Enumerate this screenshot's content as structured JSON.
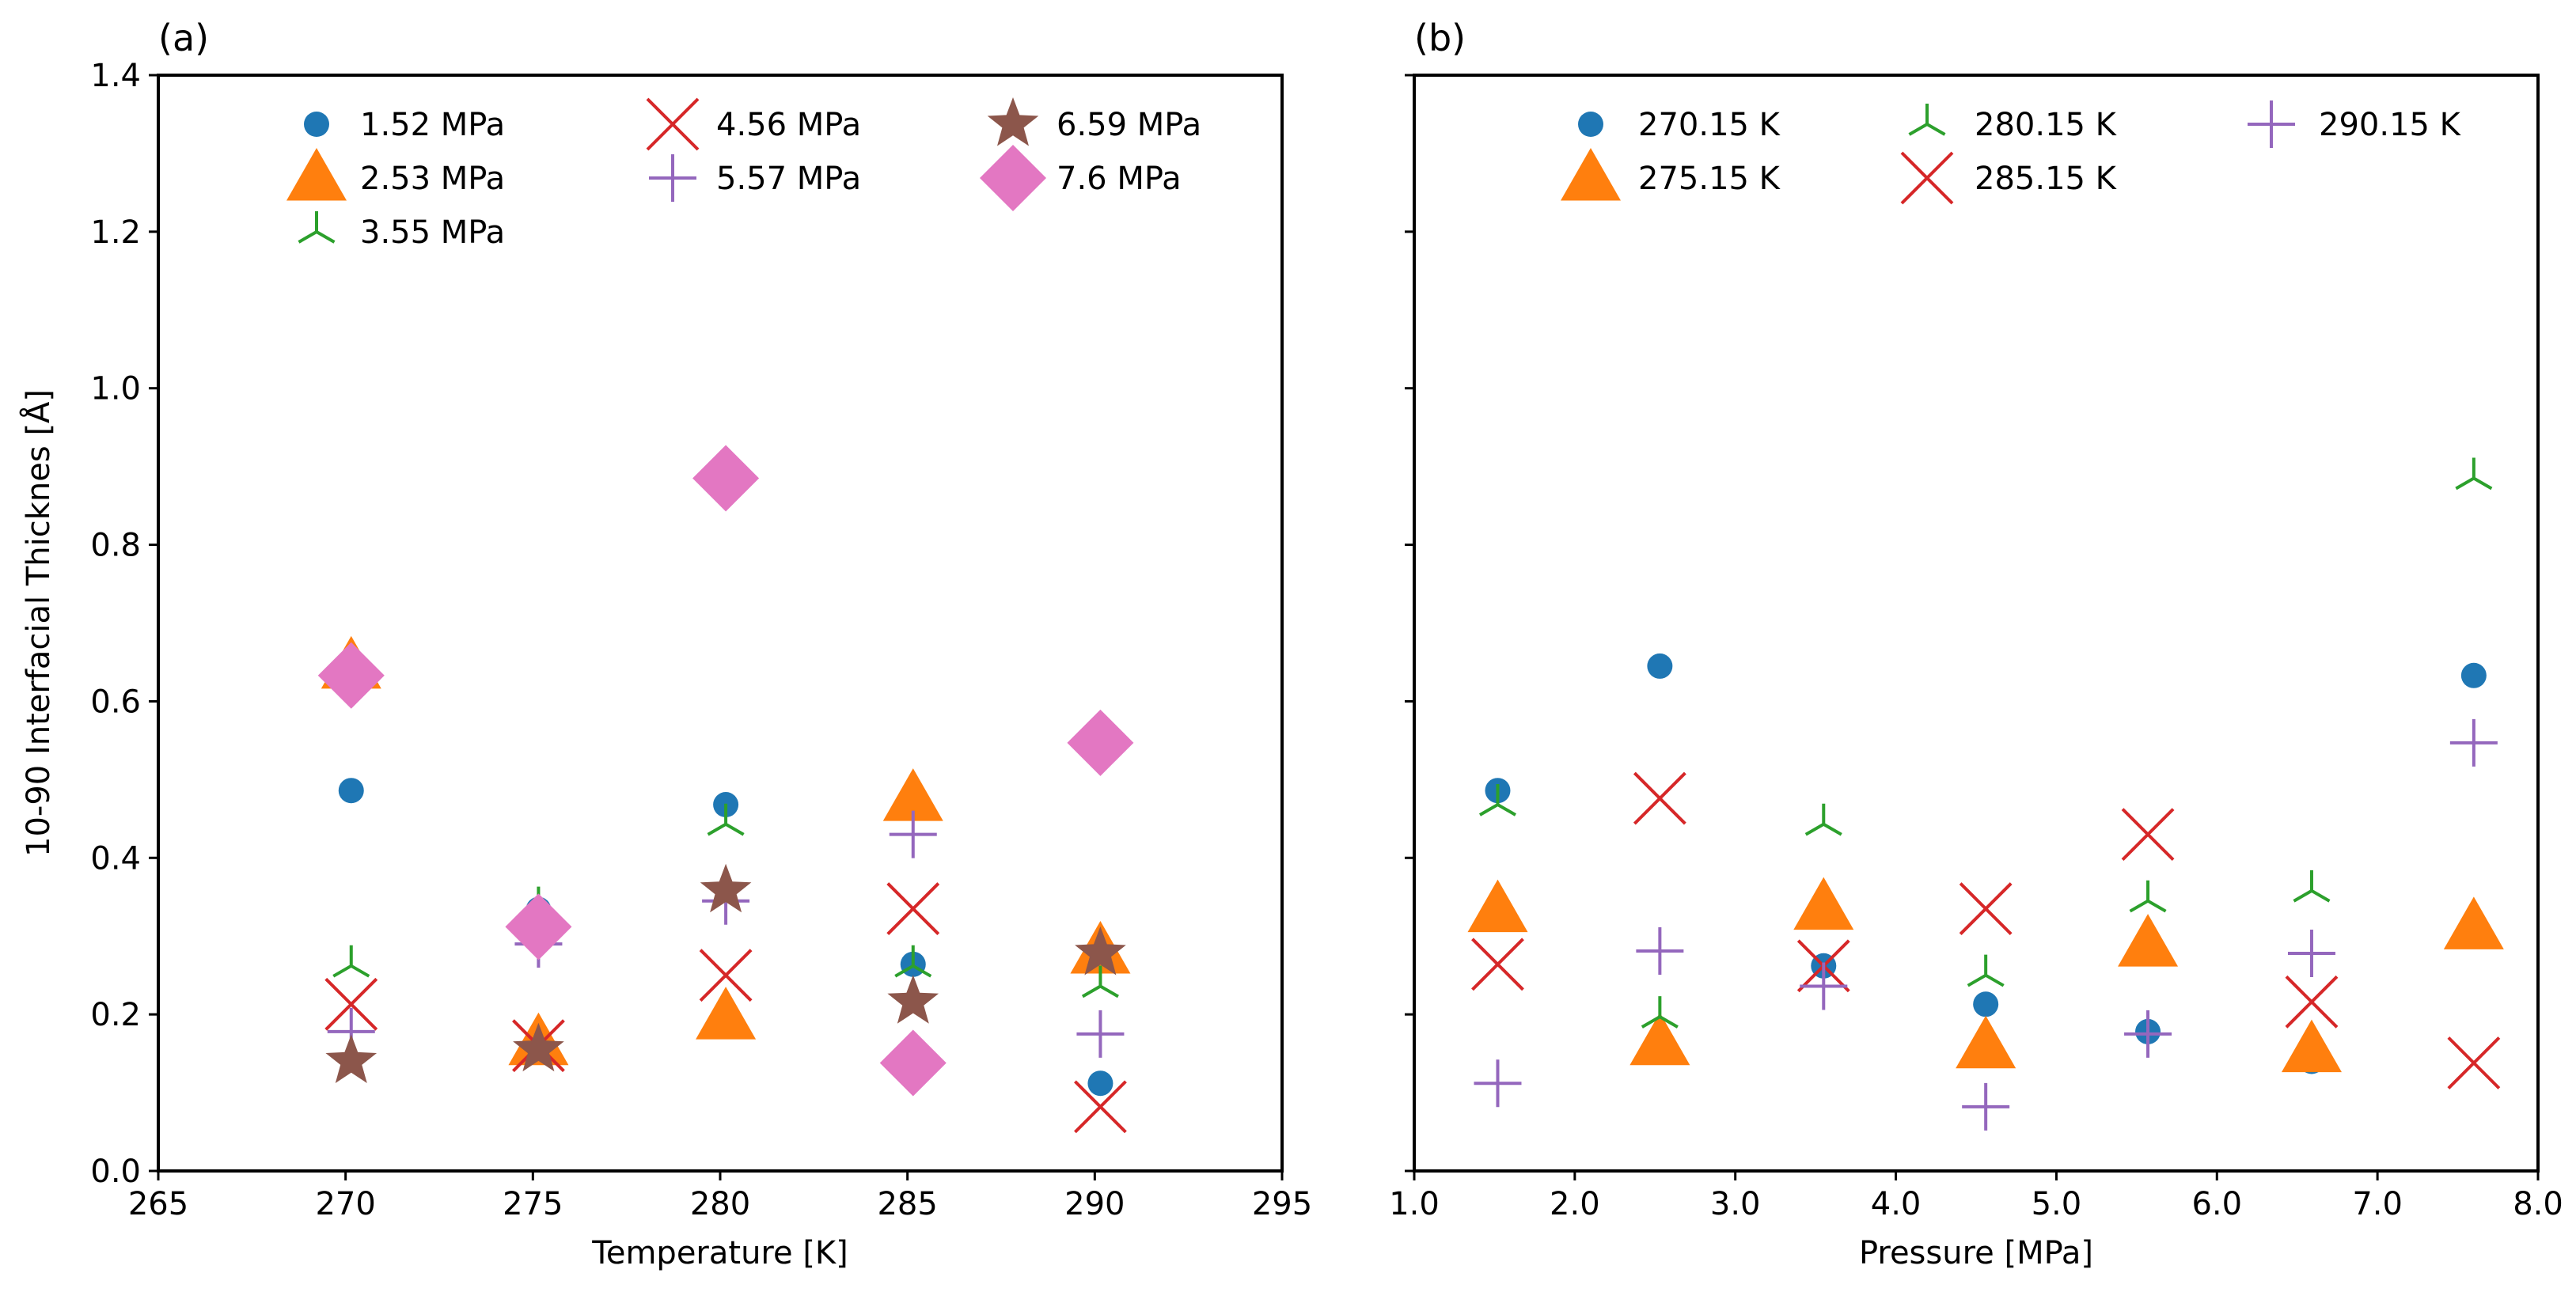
{
  "chart_data": [
    {
      "type": "scatter",
      "panel_label": "(a)",
      "xlabel": "Temperature [K]",
      "ylabel": "10-90 Interfacial Thicknes [Å]",
      "xlim": [
        265,
        295
      ],
      "ylim": [
        0.0,
        1.4
      ],
      "xticks": [
        265,
        270,
        275,
        280,
        285,
        290,
        295
      ],
      "xtick_labels": [
        "265",
        "270",
        "275",
        "280",
        "285",
        "290",
        "295"
      ],
      "yticks": [
        0.0,
        0.2,
        0.4,
        0.6,
        0.8,
        1.0,
        1.2,
        1.4
      ],
      "ytick_labels": [
        "0.0",
        "0.2",
        "0.4",
        "0.6",
        "0.8",
        "1.0",
        "1.2",
        "1.4"
      ],
      "legend_position": "top",
      "grid": false,
      "series": [
        {
          "name": "1.52 MPa",
          "marker": "circle",
          "color": "#1f77b4",
          "x": [
            270.15,
            275.15,
            280.15,
            285.15,
            290.15
          ],
          "y": [
            0.486,
            0.334,
            0.468,
            0.264,
            0.112
          ]
        },
        {
          "name": "2.53 MPa",
          "marker": "triangle",
          "color": "#ff7f0e",
          "x": [
            270.15,
            275.15,
            280.15,
            285.15,
            290.15
          ],
          "y": [
            0.645,
            0.164,
            0.197,
            0.476,
            0.281
          ]
        },
        {
          "name": "3.55 MPa",
          "marker": "tri",
          "color": "#2ca02c",
          "x": [
            270.15,
            275.15,
            280.15,
            285.15,
            290.15
          ],
          "y": [
            0.262,
            0.337,
            0.443,
            0.262,
            0.236
          ]
        },
        {
          "name": "4.56 MPa",
          "marker": "x",
          "color": "#d62728",
          "x": [
            270.15,
            275.15,
            280.15,
            285.15,
            290.15
          ],
          "y": [
            0.213,
            0.16,
            0.25,
            0.335,
            0.082
          ]
        },
        {
          "name": "5.57 MPa",
          "marker": "plus",
          "color": "#9467bd",
          "x": [
            270.15,
            275.15,
            280.15,
            285.15,
            290.15
          ],
          "y": [
            0.178,
            0.29,
            0.345,
            0.43,
            0.175
          ]
        },
        {
          "name": "6.59 MPa",
          "marker": "star",
          "color": "#8c564b",
          "x": [
            270.15,
            275.15,
            280.15,
            285.15,
            290.15
          ],
          "y": [
            0.14,
            0.155,
            0.358,
            0.216,
            0.278
          ]
        },
        {
          "name": "7.6 MPa",
          "marker": "diamond",
          "color": "#e377c2",
          "x": [
            270.15,
            275.15,
            280.15,
            285.15,
            290.15
          ],
          "y": [
            0.633,
            0.312,
            0.885,
            0.138,
            0.547
          ]
        }
      ]
    },
    {
      "type": "scatter",
      "panel_label": "(b)",
      "xlabel": "Pressure [MPa]",
      "ylabel": "",
      "xlim": [
        1.0,
        8.0
      ],
      "ylim": [
        0.0,
        1.4
      ],
      "xticks": [
        1.0,
        2.0,
        3.0,
        4.0,
        5.0,
        6.0,
        7.0,
        8.0
      ],
      "xtick_labels": [
        "1.0",
        "2.0",
        "3.0",
        "4.0",
        "5.0",
        "6.0",
        "7.0",
        "8.0"
      ],
      "yticks": [
        0.0,
        0.2,
        0.4,
        0.6,
        0.8,
        1.0,
        1.2,
        1.4
      ],
      "ytick_labels": [
        "",
        "",
        "",
        "",
        "",
        "",
        "",
        ""
      ],
      "legend_position": "top",
      "grid": false,
      "series": [
        {
          "name": "270.15 K",
          "marker": "circle",
          "color": "#1f77b4",
          "x": [
            1.52,
            2.53,
            3.55,
            4.56,
            5.57,
            6.59,
            7.6
          ],
          "y": [
            0.486,
            0.645,
            0.262,
            0.213,
            0.178,
            0.14,
            0.633
          ]
        },
        {
          "name": "275.15 K",
          "marker": "triangle",
          "color": "#ff7f0e",
          "x": [
            1.52,
            2.53,
            3.55,
            4.56,
            5.57,
            6.59,
            7.6
          ],
          "y": [
            0.334,
            0.164,
            0.337,
            0.16,
            0.29,
            0.155,
            0.312
          ]
        },
        {
          "name": "280.15 K",
          "marker": "tri",
          "color": "#2ca02c",
          "x": [
            1.52,
            2.53,
            3.55,
            4.56,
            5.57,
            6.59,
            7.6
          ],
          "y": [
            0.468,
            0.197,
            0.443,
            0.25,
            0.345,
            0.358,
            0.885
          ]
        },
        {
          "name": "285.15 K",
          "marker": "x",
          "color": "#d62728",
          "x": [
            1.52,
            2.53,
            3.55,
            4.56,
            5.57,
            6.59,
            7.6
          ],
          "y": [
            0.264,
            0.476,
            0.262,
            0.335,
            0.43,
            0.216,
            0.138
          ]
        },
        {
          "name": "290.15 K",
          "marker": "plus",
          "color": "#9467bd",
          "x": [
            1.52,
            2.53,
            3.55,
            4.56,
            5.57,
            6.59,
            7.6
          ],
          "y": [
            0.112,
            0.281,
            0.236,
            0.082,
            0.175,
            0.278,
            0.547
          ]
        }
      ]
    }
  ]
}
